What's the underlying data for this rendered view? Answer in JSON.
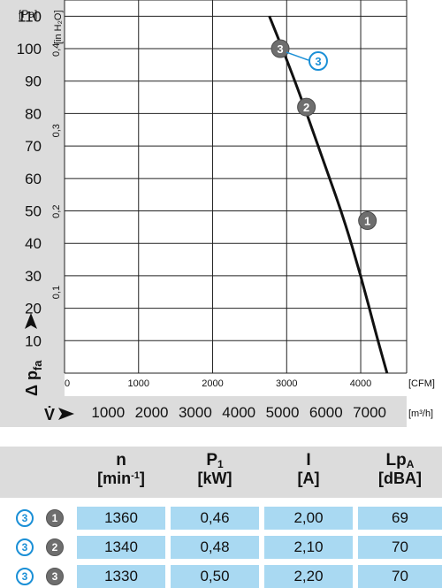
{
  "chart_data": {
    "type": "line",
    "y_axis": {
      "unit_primary": "[Pa]",
      "unit_secondary": "[in H₂O]",
      "ticks_primary": [
        "110",
        "100",
        "90",
        "80",
        "70",
        "60",
        "50",
        "40",
        "30",
        "20",
        "10"
      ],
      "ticks_secondary": [
        "0,4",
        "0,3",
        "0,2",
        "0,1"
      ],
      "range_pa": [
        0,
        115
      ],
      "label_main": "Δ p",
      "label_sub": "fa"
    },
    "x_axis": {
      "unit_primary": "[CFM]",
      "ticks_cfm": [
        "0",
        "1000",
        "2000",
        "3000",
        "4000"
      ],
      "label_main": "V̇",
      "unit_secondary": "[m³/h]",
      "ticks_m3h": [
        "1000",
        "2000",
        "3000",
        "4000",
        "5000",
        "6000",
        "7000"
      ],
      "range_m3h": [
        0,
        7850
      ]
    },
    "grid": true,
    "series": [
      {
        "curve": [
          [
            4700,
            110
          ],
          [
            5000,
            100
          ],
          [
            5400,
            86
          ],
          [
            5950,
            65
          ],
          [
            6400,
            48
          ],
          [
            6800,
            30
          ],
          [
            7150,
            12
          ],
          [
            7400,
            0
          ]
        ],
        "markers": [
          {
            "label": "3",
            "x": 4950,
            "y": 100
          },
          {
            "label": "2",
            "x": 5550,
            "y": 82
          },
          {
            "label": "1",
            "x": 6950,
            "y": 47
          }
        ],
        "callout": {
          "label": "3",
          "x": 5050,
          "y": 100
        }
      }
    ]
  },
  "table": {
    "headers": [
      {
        "sym": "n",
        "sub": "",
        "unit": "[min",
        "unit_sup": "-1",
        "unit_end": "]"
      },
      {
        "sym": "P",
        "sub": "1",
        "unit": "[kW]",
        "unit_sup": "",
        "unit_end": ""
      },
      {
        "sym": "I",
        "sub": "",
        "unit": "[A]",
        "unit_sup": "",
        "unit_end": ""
      },
      {
        "sym": "Lp",
        "sub": "A",
        "unit": "[dBA]",
        "unit_sup": "",
        "unit_end": ""
      }
    ],
    "rows": [
      {
        "speed": "3",
        "point": "1",
        "n": "1360",
        "p1": "0,46",
        "i": "2,00",
        "lpa": "69"
      },
      {
        "speed": "3",
        "point": "2",
        "n": "1340",
        "p1": "0,48",
        "i": "2,10",
        "lpa": "70"
      },
      {
        "speed": "3",
        "point": "3",
        "n": "1330",
        "p1": "0,50",
        "i": "2,20",
        "lpa": "70"
      }
    ]
  }
}
